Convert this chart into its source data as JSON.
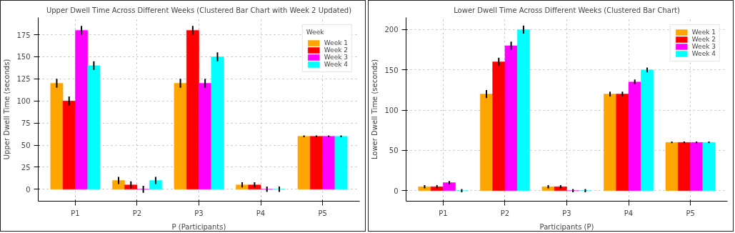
{
  "chart_data": [
    {
      "type": "bar",
      "title": "Upper Dwell Time Across Different Weeks (Clustered Bar Chart with Week 2 Updated)",
      "xlabel": "P (Participants)",
      "ylabel": "Upper Dwell Time (seconds)",
      "categories": [
        "P1",
        "P2",
        "P3",
        "P4",
        "P5"
      ],
      "series": [
        {
          "name": "Week 1",
          "color": "#ffa500",
          "values": [
            120,
            10,
            120,
            5,
            60
          ],
          "errors": [
            5,
            4,
            5,
            3,
            1
          ]
        },
        {
          "name": "Week 2",
          "color": "#ff0000",
          "values": [
            100,
            5,
            180,
            5,
            60
          ],
          "errors": [
            5,
            4,
            5,
            3,
            1
          ]
        },
        {
          "name": "Week 3",
          "color": "#ff00ff",
          "values": [
            180,
            0,
            120,
            0,
            60
          ],
          "errors": [
            5,
            4,
            5,
            3,
            1
          ]
        },
        {
          "name": "Week 4",
          "color": "#00ffff",
          "values": [
            140,
            10,
            150,
            0,
            60
          ],
          "errors": [
            5,
            4,
            5,
            3,
            1
          ]
        }
      ],
      "ylim": [
        -13.5,
        194.5
      ],
      "yticks": [
        0,
        25,
        50,
        75,
        100,
        125,
        150,
        175
      ],
      "grid": true,
      "legend": "top right",
      "legend_title": "Week"
    },
    {
      "type": "bar",
      "title": "Lower Dwell Time Across Different Weeks (Clustered Bar Chart)",
      "xlabel": "Participants (P)",
      "ylabel": "Lower Dwell Time (seconds)",
      "categories": [
        "P1",
        "P2",
        "P3",
        "P4",
        "P5"
      ],
      "series": [
        {
          "name": "Week 1",
          "color": "#ffa500",
          "values": [
            5,
            120,
            5,
            120,
            60
          ],
          "errors": [
            2,
            5,
            2,
            3,
            1
          ]
        },
        {
          "name": "Week 2",
          "color": "#ff0000",
          "values": [
            5,
            160,
            5,
            120,
            60
          ],
          "errors": [
            2,
            5,
            2,
            3,
            1
          ]
        },
        {
          "name": "Week 3",
          "color": "#ff00ff",
          "values": [
            10,
            180,
            0,
            135,
            60
          ],
          "errors": [
            2,
            5,
            2,
            3,
            1
          ]
        },
        {
          "name": "Week 4",
          "color": "#00ffff",
          "values": [
            0,
            200,
            0,
            150,
            60
          ],
          "errors": [
            2,
            5,
            2,
            3,
            1
          ]
        }
      ],
      "ylim": [
        -13,
        215
      ],
      "yticks": [
        0,
        50,
        100,
        150,
        200
      ],
      "grid": true,
      "legend": "top right"
    }
  ]
}
